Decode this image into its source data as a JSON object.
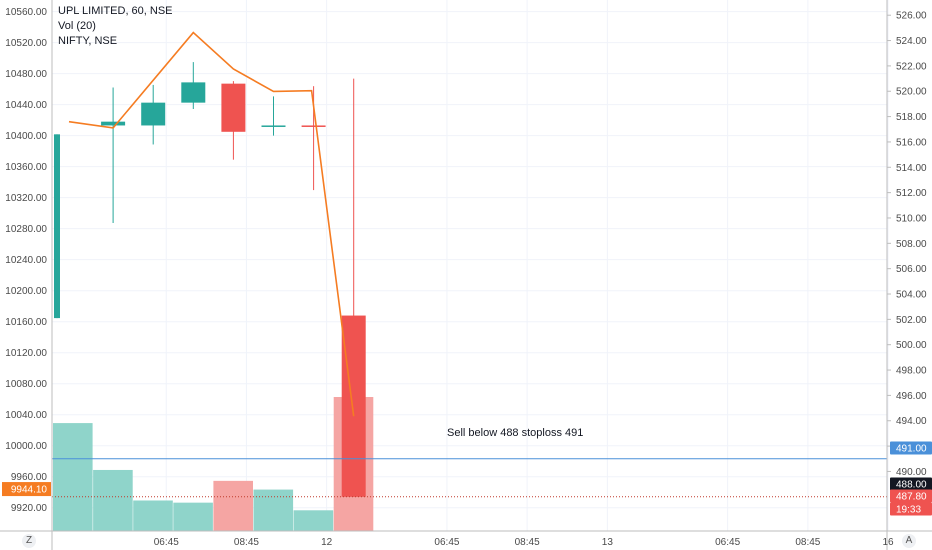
{
  "legend": {
    "symbol_line": "UPL LIMITED, 60, NSE",
    "volume_line": "Vol (20)",
    "compare_line": "NIFTY, NSE"
  },
  "corner": {
    "left": "Z",
    "right": "A"
  },
  "annotation": "Sell below 488 stoploss 491",
  "colors": {
    "up": "#26a69a",
    "down": "#ef5350",
    "vol_up": "#8fd4ca",
    "vol_down": "#f5a5a3",
    "nifty": "#f57c22",
    "level": "#4a90d9",
    "price_line": "#c0392b"
  },
  "chart_data": {
    "type": "candlestick",
    "left_axis": {
      "name": "NIFTY, NSE",
      "min": 9890,
      "max": 10575,
      "ticks": [
        "10560.00",
        "10520.00",
        "10480.00",
        "10440.00",
        "10400.00",
        "10360.00",
        "10320.00",
        "10280.00",
        "10240.00",
        "10200.00",
        "10160.00",
        "10120.00",
        "10080.00",
        "10040.00",
        "10000.00",
        "9960.00",
        "9920.00"
      ],
      "last_value_label": "9944.10",
      "last_value": 9944.1
    },
    "right_axis": {
      "name": "UPL LIMITED",
      "min": 485.3,
      "max": 527.2,
      "ticks": [
        "526.00",
        "524.00",
        "522.00",
        "520.00",
        "518.00",
        "516.00",
        "514.00",
        "512.00",
        "510.00",
        "508.00",
        "506.00",
        "504.00",
        "502.00",
        "500.00",
        "498.00",
        "496.00",
        "494.00",
        "492.00",
        "490.00"
      ],
      "labels": [
        {
          "text": "491.00",
          "value": 491.0,
          "style": "level"
        },
        {
          "text": "488.00",
          "value": 488.0,
          "style": "current"
        },
        {
          "text": "487.80",
          "value": 487.8,
          "style": "price"
        },
        {
          "text": "19:33",
          "value": 486.6,
          "style": "price"
        }
      ]
    },
    "x_axis": {
      "slots": 21,
      "ticks": [
        {
          "label": "06:45",
          "slot": 3
        },
        {
          "label": "08:45",
          "slot": 5
        },
        {
          "label": "12",
          "slot": 7
        },
        {
          "label": "06:45",
          "slot": 10
        },
        {
          "label": "08:45",
          "slot": 12
        },
        {
          "label": "13",
          "slot": 14
        },
        {
          "label": "06:45",
          "slot": 17
        },
        {
          "label": "08:45",
          "slot": 19
        },
        {
          "label": "16",
          "slot": 21
        }
      ]
    },
    "candles": [
      {
        "slot": 0,
        "open": 502.1,
        "high": 516.6,
        "low": 502.1,
        "close": 516.6
      },
      {
        "slot": 1,
        "open": 517.3,
        "high": 520.3,
        "low": 509.6,
        "close": 517.6
      },
      {
        "slot": 2,
        "open": 517.3,
        "high": 520.5,
        "low": 515.8,
        "close": 519.1
      },
      {
        "slot": 3,
        "open": 519.1,
        "high": 522.3,
        "low": 518.6,
        "close": 520.7
      },
      {
        "slot": 4,
        "open": 520.6,
        "high": 520.8,
        "low": 514.6,
        "close": 516.8
      },
      {
        "slot": 5,
        "open": 517.2,
        "high": 519.6,
        "low": 516.5,
        "close": 517.3
      },
      {
        "slot": 6,
        "open": 517.3,
        "high": 520.4,
        "low": 512.2,
        "close": 517.2
      },
      {
        "slot": 7,
        "open": 502.3,
        "high": 521.0,
        "low": 488.0,
        "close": 488.0
      }
    ],
    "volume": {
      "min": 0,
      "max": 100,
      "bars": [
        {
          "slot": 0,
          "value": 99,
          "dir": "up"
        },
        {
          "slot": 1,
          "value": 56,
          "dir": "up"
        },
        {
          "slot": 2,
          "value": 28,
          "dir": "up"
        },
        {
          "slot": 3,
          "value": 26,
          "dir": "up"
        },
        {
          "slot": 4,
          "value": 46,
          "dir": "down"
        },
        {
          "slot": 5,
          "value": 38,
          "dir": "up"
        },
        {
          "slot": 6,
          "value": 19,
          "dir": "up"
        },
        {
          "slot": 7,
          "value": 123,
          "dir": "down"
        }
      ]
    },
    "compare_line": {
      "name": "NIFTY, NSE",
      "points": [
        {
          "slot": -0.1,
          "value": 10418
        },
        {
          "slot": 1.0,
          "value": 10410
        },
        {
          "slot": 3.0,
          "value": 10533
        },
        {
          "slot": 4.0,
          "value": 10486
        },
        {
          "slot": 5.0,
          "value": 10457
        },
        {
          "slot": 5.95,
          "value": 10458
        },
        {
          "slot": 7.0,
          "value": 10038
        }
      ]
    },
    "levels": [
      {
        "value": 491.0,
        "style": "solid",
        "color": "#4a90d9"
      },
      {
        "value": 488.0,
        "style": "dotted",
        "color": "#c0392b"
      }
    ],
    "grid": true
  }
}
